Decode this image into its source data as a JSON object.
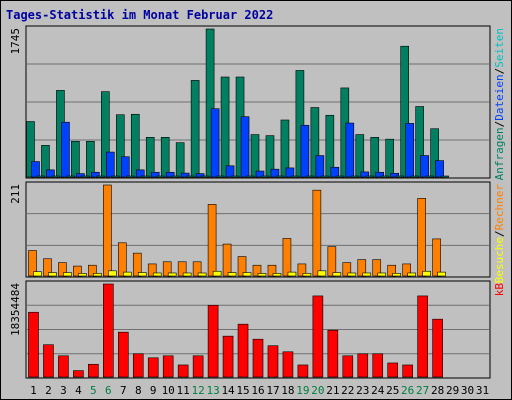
{
  "title": "Tages-Statistik im Monat Februar 2022",
  "colors": {
    "background": "#c0c0c0",
    "border": "#000000",
    "title": "#0000a0",
    "grid": "#707070",
    "anfragen": "#008060",
    "dateien": "#0040ff",
    "seiten": "#00c0c0",
    "besuche": "#ffff00",
    "rechner": "#ff8000",
    "kb": "#ff0000",
    "weekend": "#008040",
    "weekday": "#000000",
    "slash": "#000000"
  },
  "chart_data": [
    {
      "type": "bar",
      "panel": "top",
      "ymax_label": "1745",
      "ylim": [
        0,
        1745
      ],
      "right_labels": [
        {
          "text": "Anfragen",
          "color": "anfragen"
        },
        {
          "text": "/",
          "color": "slash"
        },
        {
          "text": "Dateien",
          "color": "dateien"
        },
        {
          "text": "/",
          "color": "slash"
        },
        {
          "text": "Seiten",
          "color": "seiten"
        }
      ],
      "series": [
        {
          "name": "Anfragen",
          "color": "anfragen",
          "values": [
            654,
            373,
            1021,
            421,
            421,
            1006,
            734,
            740,
            468,
            468,
            405,
            1139,
            1745,
            1179,
            1179,
            500,
            488,
            672,
            1256,
            819,
            728,
            1050,
            500,
            468,
            446,
            1542,
            831,
            569
          ]
        },
        {
          "name": "Dateien",
          "color": "dateien",
          "values": [
            182,
            84,
            646,
            40,
            56,
            294,
            239,
            84,
            56,
            56,
            46,
            40,
            805,
            132,
            711,
            70,
            92,
            107,
            610,
            253,
            115,
            636,
            60,
            56,
            44,
            632,
            253,
            193
          ]
        },
        {
          "name": "Seiten",
          "color": "seiten",
          "values": [
            8,
            6,
            10,
            5,
            5,
            8,
            7,
            6,
            5,
            5,
            5,
            6,
            12,
            7,
            9,
            5,
            5,
            6,
            9,
            7,
            6,
            8,
            5,
            5,
            5,
            9,
            7,
            6
          ]
        }
      ]
    },
    {
      "type": "bar",
      "panel": "middle",
      "ymax_label": "211",
      "ylim": [
        0,
        211
      ],
      "right_labels": [
        {
          "text": "Besuche",
          "color": "besuche"
        },
        {
          "text": "/",
          "color": "slash"
        },
        {
          "text": "Rechner",
          "color": "rechner"
        }
      ],
      "series": [
        {
          "name": "Rechner",
          "color": "rechner",
          "values": [
            59,
            40,
            31,
            23,
            25,
            211,
            77,
            53,
            28,
            33,
            33,
            33,
            166,
            74,
            45,
            25,
            25,
            87,
            28,
            199,
            68,
            31,
            38,
            38,
            25,
            28,
            180,
            86
          ]
        },
        {
          "name": "Besuche",
          "color": "besuche",
          "values": [
            10,
            8,
            8,
            6,
            6,
            12,
            9,
            8,
            7,
            7,
            7,
            7,
            11,
            8,
            8,
            6,
            6,
            9,
            6,
            12,
            8,
            7,
            7,
            7,
            6,
            7,
            11,
            9
          ]
        }
      ]
    },
    {
      "type": "bar",
      "panel": "bottom",
      "ymax_label": "18354484",
      "ylim": [
        0,
        18354484
      ],
      "right_labels": [
        {
          "text": "kB",
          "color": "kb"
        }
      ],
      "series": [
        {
          "name": "kB",
          "color": "kb",
          "values": [
            12782000,
            6371000,
            4183000,
            1257000,
            2515000,
            18354484,
            8851000,
            4574000,
            3789000,
            4183000,
            2376000,
            4183000,
            14157000,
            8062000,
            10426000,
            7458000,
            6171000,
            4976000,
            2376000,
            16000000,
            9240000,
            4183000,
            4574000,
            4574000,
            2770000,
            2376000,
            16000000,
            11413000
          ]
        }
      ]
    }
  ],
  "x_labels": [
    {
      "day": "1",
      "weekend": false
    },
    {
      "day": "2",
      "weekend": false
    },
    {
      "day": "3",
      "weekend": false
    },
    {
      "day": "4",
      "weekend": false
    },
    {
      "day": "5",
      "weekend": true
    },
    {
      "day": "6",
      "weekend": true
    },
    {
      "day": "7",
      "weekend": false
    },
    {
      "day": "8",
      "weekend": false
    },
    {
      "day": "9",
      "weekend": false
    },
    {
      "day": "10",
      "weekend": false
    },
    {
      "day": "11",
      "weekend": false
    },
    {
      "day": "12",
      "weekend": true
    },
    {
      "day": "13",
      "weekend": true
    },
    {
      "day": "14",
      "weekend": false
    },
    {
      "day": "15",
      "weekend": false
    },
    {
      "day": "16",
      "weekend": false
    },
    {
      "day": "17",
      "weekend": false
    },
    {
      "day": "18",
      "weekend": false
    },
    {
      "day": "19",
      "weekend": true
    },
    {
      "day": "20",
      "weekend": true
    },
    {
      "day": "21",
      "weekend": false
    },
    {
      "day": "22",
      "weekend": false
    },
    {
      "day": "23",
      "weekend": false
    },
    {
      "day": "24",
      "weekend": false
    },
    {
      "day": "25",
      "weekend": false
    },
    {
      "day": "26",
      "weekend": true
    },
    {
      "day": "27",
      "weekend": true
    },
    {
      "day": "28",
      "weekend": false
    },
    {
      "day": "29",
      "weekend": false
    },
    {
      "day": "30",
      "weekend": false
    },
    {
      "day": "31",
      "weekend": false
    }
  ]
}
